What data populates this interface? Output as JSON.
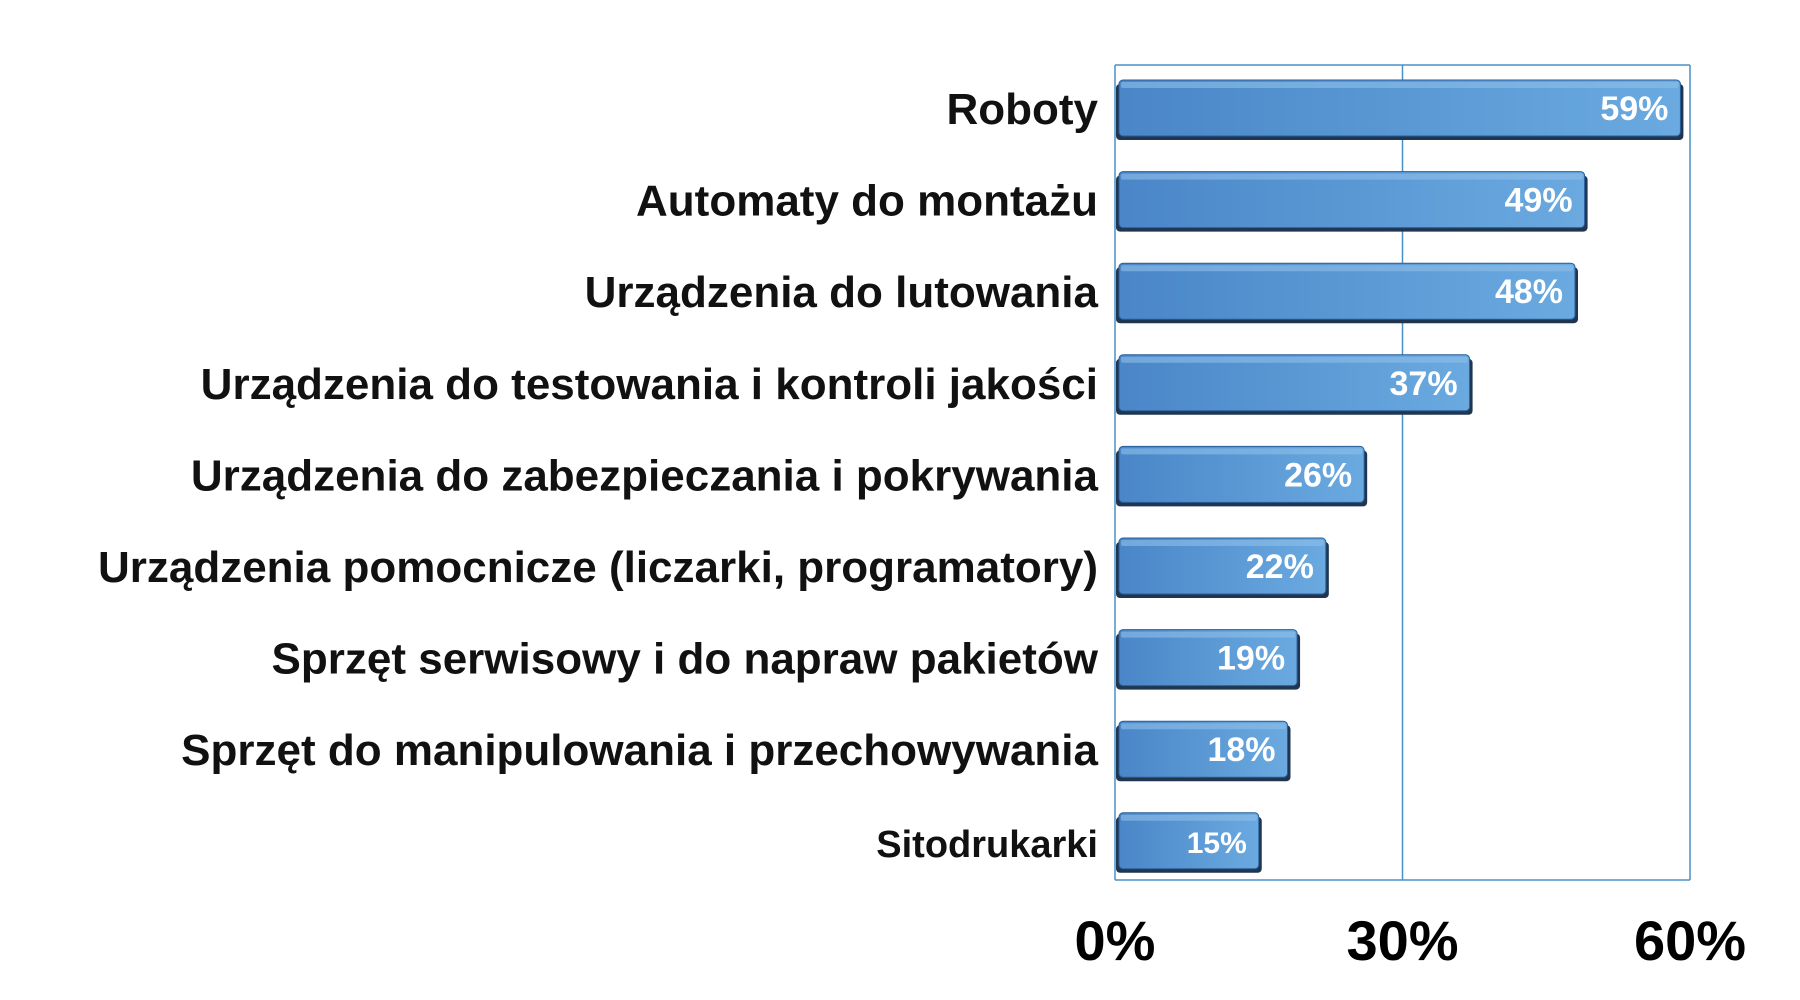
{
  "chart_data": {
    "type": "bar",
    "orientation": "horizontal",
    "categories": [
      "Roboty",
      "Automaty do montażu",
      "Urządzenia do lutowania",
      "Urządzenia do testowania i kontroli jakości",
      "Urządzenia do zabezpieczania i pokrywania",
      "Urządzenia pomocnicze (liczarki, programatory)",
      "Sprzęt serwisowy i do napraw pakietów",
      "Sprzęt do manipulowania i przechowywania",
      "Sitodrukarki"
    ],
    "values": [
      59,
      49,
      48,
      37,
      26,
      22,
      19,
      18,
      15
    ],
    "value_labels": [
      "59%",
      "49%",
      "48%",
      "37%",
      "26%",
      "22%",
      "19%",
      "18%",
      "15%"
    ],
    "xlim": [
      0,
      60
    ],
    "x_ticks": [
      0,
      30,
      60
    ],
    "x_tick_labels": [
      "0%",
      "30%",
      "60%"
    ],
    "grid": "vertical",
    "legend": "none",
    "colors": {
      "bar_light": "#6fa8dc",
      "bar_mid": "#4f8fd0",
      "bar_dark": "#2a6fba",
      "bar_shadow": "#1f3550",
      "grid_line": "#4a90c8"
    }
  }
}
